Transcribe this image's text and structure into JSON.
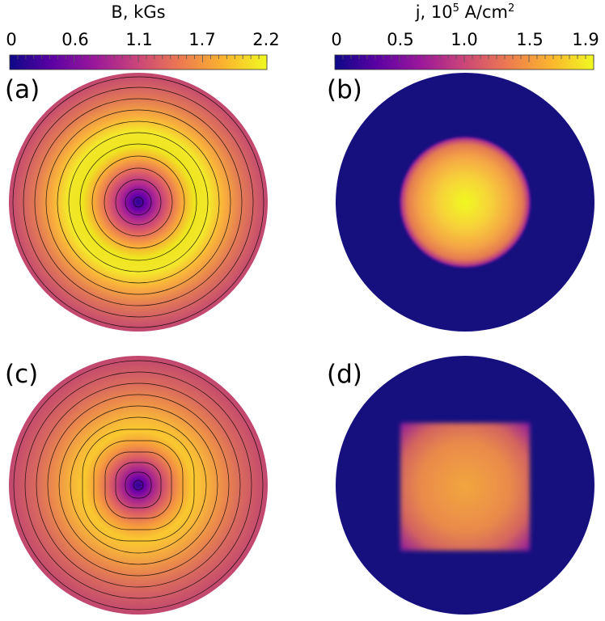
{
  "colorbars": [
    {
      "title": "B, kGs",
      "title_sup": "",
      "title_tail": "",
      "ticks": [
        "0",
        "0.6",
        "1.1",
        "1.7",
        "2.2"
      ],
      "cmap": "plasma"
    },
    {
      "title": "j, 10",
      "title_sup": "5",
      "title_tail": " A/cm",
      "title_sup2": "2",
      "ticks": [
        "0",
        "0.5",
        "1.0",
        "1.5",
        "1.9"
      ],
      "cmap": "plasma"
    }
  ],
  "panels": [
    {
      "label": "(a)",
      "kind": "field",
      "variant": "circular-core"
    },
    {
      "label": "(b)",
      "kind": "current",
      "variant": "disk"
    },
    {
      "label": "(c)",
      "kind": "field",
      "variant": "square-core"
    },
    {
      "label": "(d)",
      "kind": "current",
      "variant": "square"
    }
  ],
  "colors": {
    "plasma_stops": [
      "#0d0887",
      "#5b02a3",
      "#9a179b",
      "#cb4678",
      "#eb7852",
      "#fbb32f",
      "#f0f921"
    ],
    "background_current": "#16107e",
    "outer_field": "#c14670"
  }
}
